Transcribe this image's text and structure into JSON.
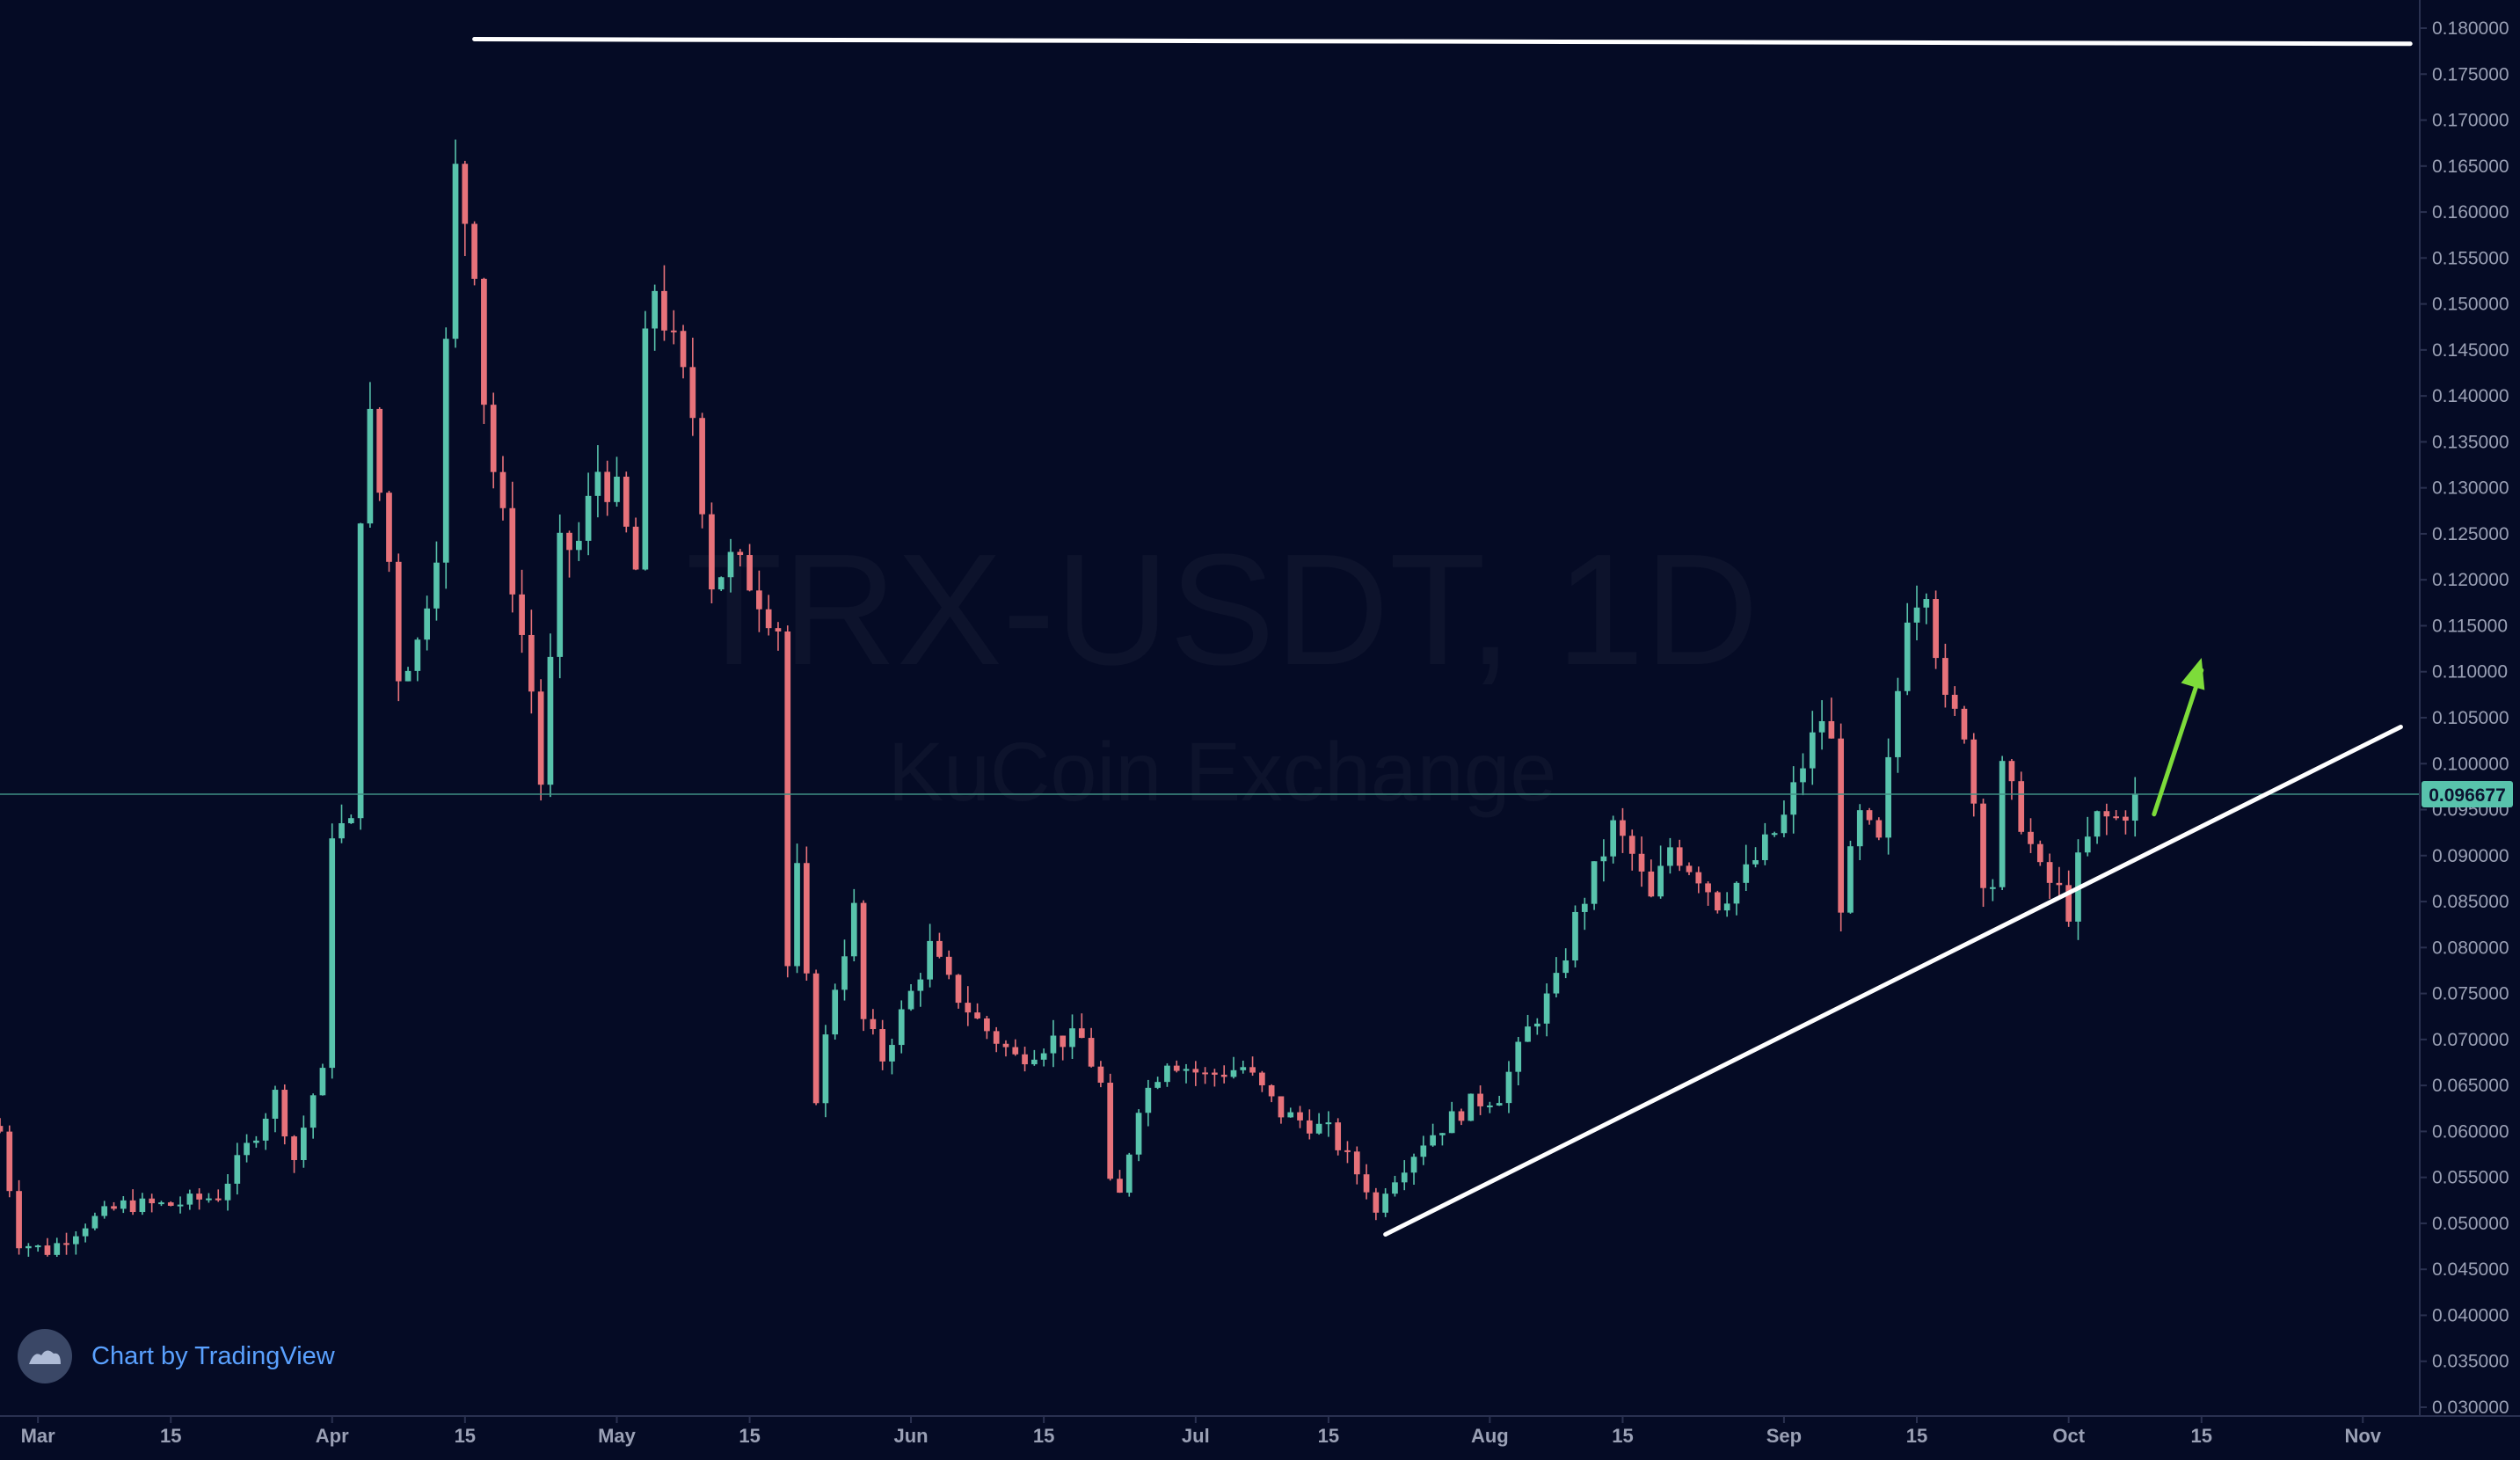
{
  "chart_data": {
    "type": "candlestick",
    "watermark_title": "TRX-USDT, 1D",
    "watermark_subtitle": "KuCoin Exchange",
    "branding": "Chart by TradingView",
    "current_price_label": "0.096677",
    "current_price": 0.096677,
    "ylim": [
      0.03,
      0.18
    ],
    "y_ticks": [
      "0.180000",
      "0.175000",
      "0.170000",
      "0.165000",
      "0.160000",
      "0.155000",
      "0.150000",
      "0.145000",
      "0.140000",
      "0.135000",
      "0.130000",
      "0.125000",
      "0.120000",
      "0.115000",
      "0.110000",
      "0.105000",
      "0.100000",
      "0.095000",
      "0.090000",
      "0.085000",
      "0.080000",
      "0.075000",
      "0.070000",
      "0.065000",
      "0.060000",
      "0.055000",
      "0.050000",
      "0.045000",
      "0.040000",
      "0.035000",
      "0.030000"
    ],
    "x_ticks": [
      {
        "label": "Mar",
        "date": "Mar 1"
      },
      {
        "label": "15",
        "date": "Mar 15"
      },
      {
        "label": "Apr",
        "date": "Apr 1"
      },
      {
        "label": "15",
        "date": "Apr 15"
      },
      {
        "label": "May",
        "date": "May 1"
      },
      {
        "label": "15",
        "date": "May 15"
      },
      {
        "label": "Jun",
        "date": "Jun 1"
      },
      {
        "label": "15",
        "date": "Jun 15"
      },
      {
        "label": "Jul",
        "date": "Jul 1"
      },
      {
        "label": "15",
        "date": "Jul 15"
      },
      {
        "label": "Aug",
        "date": "Aug 1"
      },
      {
        "label": "15",
        "date": "Aug 15"
      },
      {
        "label": "Sep",
        "date": "Sep 1"
      },
      {
        "label": "15",
        "date": "Sep 15"
      },
      {
        "label": "Oct",
        "date": "Oct 1"
      },
      {
        "label": "15",
        "date": "Oct 15"
      },
      {
        "label": "Nov",
        "date": "Nov 1"
      }
    ],
    "x_range": [
      "Feb 25",
      "Nov 7"
    ],
    "close_path": [
      [
        "Feb 25",
        0.06
      ],
      [
        "Feb 27",
        0.048
      ],
      [
        "Mar 2",
        0.047
      ],
      [
        "Mar 6",
        0.05
      ],
      [
        "Mar 10",
        0.052
      ],
      [
        "Mar 15",
        0.052
      ],
      [
        "Mar 20",
        0.053
      ],
      [
        "Mar 24",
        0.06
      ],
      [
        "Mar 26",
        0.064
      ],
      [
        "Mar 28",
        0.057
      ],
      [
        "Mar 30",
        0.064
      ],
      [
        "Mar 31",
        0.066
      ],
      [
        "Apr 1",
        0.093
      ],
      [
        "Apr 3",
        0.093
      ],
      [
        "Apr 4",
        0.128
      ],
      [
        "Apr 5",
        0.137
      ],
      [
        "Apr 7",
        0.122
      ],
      [
        "Apr 8",
        0.11
      ],
      [
        "Apr 10",
        0.113
      ],
      [
        "Apr 12",
        0.124
      ],
      [
        "Apr 13",
        0.145
      ],
      [
        "Apr 14",
        0.164
      ],
      [
        "Apr 16",
        0.155
      ],
      [
        "Apr 17",
        0.14
      ],
      [
        "Apr 18",
        0.132
      ],
      [
        "Apr 20",
        0.12
      ],
      [
        "Apr 22",
        0.108
      ],
      [
        "Apr 23",
        0.098
      ],
      [
        "Apr 25",
        0.123
      ],
      [
        "Apr 27",
        0.124
      ],
      [
        "Apr 29",
        0.132
      ],
      [
        "May 1",
        0.129
      ],
      [
        "May 3",
        0.121
      ],
      [
        "May 4",
        0.145
      ],
      [
        "May 5",
        0.152
      ],
      [
        "May 7",
        0.145
      ],
      [
        "May 9",
        0.138
      ],
      [
        "May 11",
        0.12
      ],
      [
        "May 13",
        0.122
      ],
      [
        "May 15",
        0.12
      ],
      [
        "May 18",
        0.115
      ],
      [
        "May 19",
        0.078
      ],
      [
        "May 20",
        0.088
      ],
      [
        "May 22",
        0.064
      ],
      [
        "May 24",
        0.076
      ],
      [
        "May 26",
        0.084
      ],
      [
        "May 27",
        0.072
      ],
      [
        "May 29",
        0.068
      ],
      [
        "Jun 1",
        0.075
      ],
      [
        "Jun 3",
        0.08
      ],
      [
        "Jun 5",
        0.076
      ],
      [
        "Jun 8",
        0.072
      ],
      [
        "Jun 12",
        0.068
      ],
      [
        "Jun 16",
        0.07
      ],
      [
        "Jun 19",
        0.07
      ],
      [
        "Jun 21",
        0.065
      ],
      [
        "Jun 22",
        0.054
      ],
      [
        "Jun 23",
        0.053
      ],
      [
        "Jun 25",
        0.063
      ],
      [
        "Jun 28",
        0.068
      ],
      [
        "Jul 2",
        0.066
      ],
      [
        "Jul 6",
        0.067
      ],
      [
        "Jul 10",
        0.062
      ],
      [
        "Jul 15",
        0.06
      ],
      [
        "Jul 17",
        0.057
      ],
      [
        "Jul 19",
        0.054
      ],
      [
        "Jul 20",
        0.051
      ],
      [
        "Jul 21",
        0.054
      ],
      [
        "Jul 25",
        0.059
      ],
      [
        "Jul 30",
        0.063
      ],
      [
        "Aug 2",
        0.064
      ],
      [
        "Aug 5",
        0.071
      ],
      [
        "Aug 8",
        0.076
      ],
      [
        "Aug 10",
        0.083
      ],
      [
        "Aug 12",
        0.088
      ],
      [
        "Aug 14",
        0.093
      ],
      [
        "Aug 16",
        0.09
      ],
      [
        "Aug 18",
        0.085
      ],
      [
        "Aug 20",
        0.091
      ],
      [
        "Aug 23",
        0.088
      ],
      [
        "Aug 25",
        0.085
      ],
      [
        "Aug 28",
        0.088
      ],
      [
        "Sep 1",
        0.094
      ],
      [
        "Sep 3",
        0.1
      ],
      [
        "Sep 5",
        0.105
      ],
      [
        "Sep 6",
        0.102
      ],
      [
        "Sep 7",
        0.085
      ],
      [
        "Sep 9",
        0.094
      ],
      [
        "Sep 11",
        0.091
      ],
      [
        "Sep 13",
        0.108
      ],
      [
        "Sep 14",
        0.117
      ],
      [
        "Sep 16",
        0.12
      ],
      [
        "Sep 18",
        0.106
      ],
      [
        "Sep 20",
        0.104
      ],
      [
        "Sep 22",
        0.088
      ],
      [
        "Sep 23",
        0.087
      ],
      [
        "Sep 24",
        0.099
      ],
      [
        "Sep 26",
        0.094
      ],
      [
        "Sep 28",
        0.088
      ],
      [
        "Sep 30",
        0.086
      ],
      [
        "Oct 1",
        0.084
      ],
      [
        "Oct 2",
        0.089
      ],
      [
        "Oct 4",
        0.094
      ],
      [
        "Oct 6",
        0.094
      ],
      [
        "Oct 8",
        0.096
      ]
    ],
    "annotations": [
      {
        "type": "horizontal-line",
        "from": [
          "Apr 16",
          0.1788
        ],
        "to": [
          "Nov 6",
          0.1783
        ],
        "color": "#ffffff"
      },
      {
        "type": "trend-line",
        "from": [
          "Jul 21",
          0.0488
        ],
        "to": [
          "Nov 5",
          0.104
        ],
        "color": "#ffffff"
      },
      {
        "type": "arrow",
        "from": [
          "Oct 10",
          0.0945
        ],
        "to": [
          "Oct 15",
          0.1115
        ],
        "color": "#7ddc3a"
      }
    ],
    "colors": {
      "background": "#050b25",
      "up": "#58c3ac",
      "down": "#e7727a",
      "price_line": "#3f8f83",
      "price_tag": "#58c3ac",
      "axis_text": "#9aa0b5",
      "branding_text": "#5aa1ff"
    },
    "grid": false
  }
}
